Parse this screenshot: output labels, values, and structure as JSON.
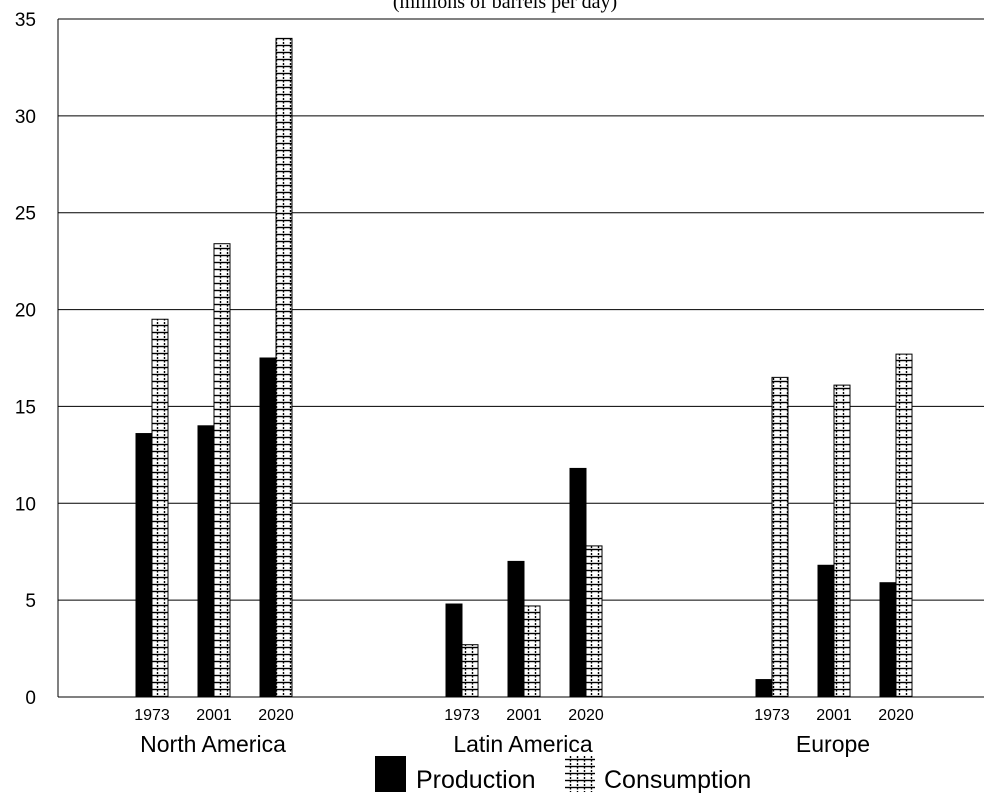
{
  "chart_data": {
    "type": "bar",
    "subtitle": "(millions of barrels per day)",
    "groups": [
      "North America",
      "Latin America",
      "Europe"
    ],
    "years": [
      "1973",
      "2001",
      "2020"
    ],
    "series": [
      {
        "name": "Production",
        "fill": "solid",
        "color": "#000000",
        "values": [
          [
            13.6,
            14.0,
            17.5
          ],
          [
            4.8,
            7.0,
            11.8
          ],
          [
            0.9,
            6.8,
            5.9
          ]
        ]
      },
      {
        "name": "Consumption",
        "fill": "grid-pattern",
        "color": "#000000",
        "values": [
          [
            19.5,
            23.4,
            34.0
          ],
          [
            2.7,
            4.7,
            7.8
          ],
          [
            16.5,
            16.1,
            17.7
          ]
        ]
      }
    ],
    "ylim": [
      0,
      35
    ],
    "yticks": [
      "0",
      "5",
      "10",
      "15",
      "20",
      "25",
      "30",
      "35"
    ],
    "grid": true,
    "legend_position": "bottom-center"
  }
}
